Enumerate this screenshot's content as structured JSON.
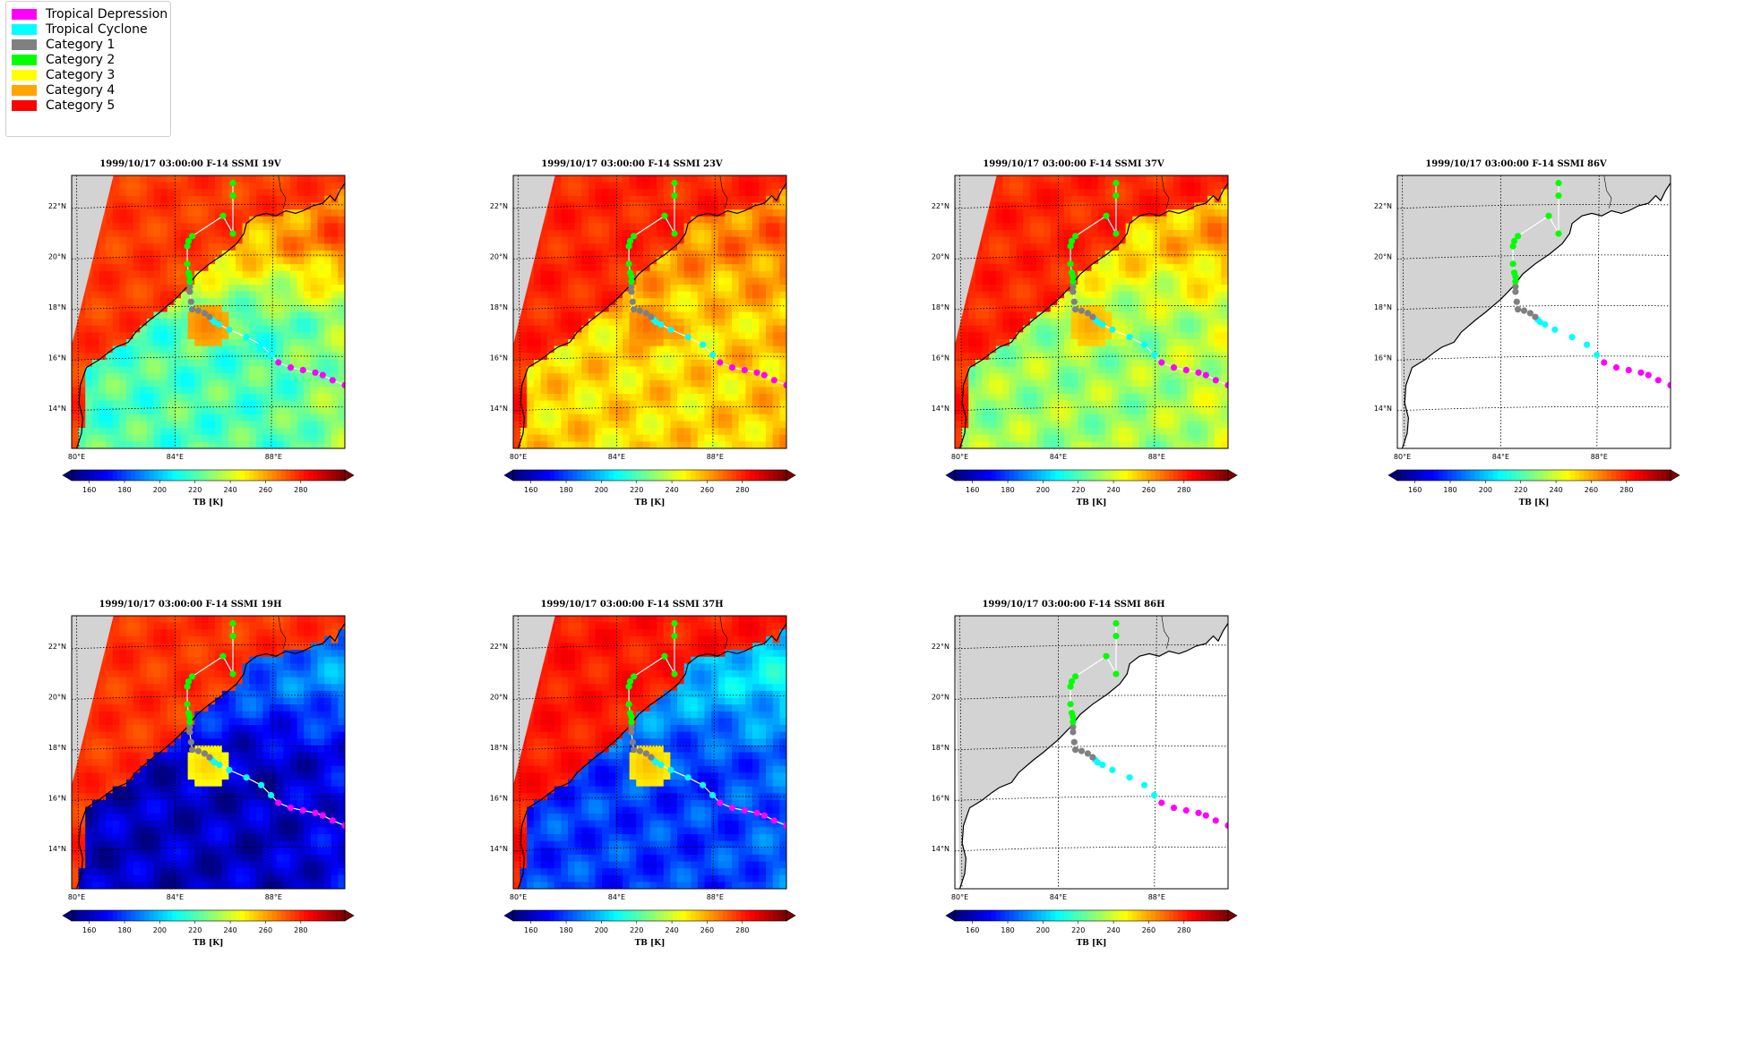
{
  "legend": {
    "items": [
      {
        "label": "Tropical Depression",
        "color": "#ff00ff"
      },
      {
        "label": "Tropical Cyclone",
        "color": "#00ffff"
      },
      {
        "label": "Category 1",
        "color": "#808080"
      },
      {
        "label": "Category 2",
        "color": "#00ff00"
      },
      {
        "label": "Category 3",
        "color": "#ffff00"
      },
      {
        "label": "Category 4",
        "color": "#ffa500"
      },
      {
        "label": "Category 5",
        "color": "#ff0000"
      }
    ]
  },
  "map": {
    "lon_ticks": [
      "80°E",
      "84°E",
      "88°E"
    ],
    "lat_ticks": [
      "22°N",
      "20°N",
      "18°N",
      "16°N",
      "14°N"
    ],
    "land_color": "#d3d3d3"
  },
  "colorbar": {
    "label": "TB [K]",
    "ticks": [
      "160",
      "180",
      "200",
      "220",
      "240",
      "260",
      "280"
    ],
    "range": [
      150,
      305
    ],
    "colormap": "jet"
  },
  "track": [
    {
      "lon": 90.9,
      "lat": 14.9,
      "cat": 0
    },
    {
      "lon": 90.4,
      "lat": 15.1,
      "cat": 0
    },
    {
      "lon": 90.0,
      "lat": 15.3,
      "cat": 0
    },
    {
      "lon": 89.7,
      "lat": 15.4,
      "cat": 0
    },
    {
      "lon": 89.2,
      "lat": 15.5,
      "cat": 0
    },
    {
      "lon": 88.7,
      "lat": 15.6,
      "cat": 0
    },
    {
      "lon": 88.2,
      "lat": 15.8,
      "cat": 0
    },
    {
      "lon": 87.9,
      "lat": 16.1,
      "cat": 1
    },
    {
      "lon": 87.5,
      "lat": 16.5,
      "cat": 1
    },
    {
      "lon": 86.9,
      "lat": 16.8,
      "cat": 1
    },
    {
      "lon": 86.2,
      "lat": 17.1,
      "cat": 1
    },
    {
      "lon": 85.8,
      "lat": 17.3,
      "cat": 1
    },
    {
      "lon": 85.6,
      "lat": 17.4,
      "cat": 1
    },
    {
      "lon": 85.5,
      "lat": 17.5,
      "cat": 1
    },
    {
      "lon": 85.4,
      "lat": 17.6,
      "cat": 2
    },
    {
      "lon": 85.2,
      "lat": 17.75,
      "cat": 2
    },
    {
      "lon": 84.95,
      "lat": 17.85,
      "cat": 2
    },
    {
      "lon": 84.7,
      "lat": 17.9,
      "cat": 2
    },
    {
      "lon": 84.65,
      "lat": 18.2,
      "cat": 2
    },
    {
      "lon": 84.6,
      "lat": 18.6,
      "cat": 2
    },
    {
      "lon": 84.6,
      "lat": 18.8,
      "cat": 2
    },
    {
      "lon": 84.6,
      "lat": 19.0,
      "cat": 3
    },
    {
      "lon": 84.6,
      "lat": 19.2,
      "cat": 3
    },
    {
      "lon": 84.55,
      "lat": 19.35,
      "cat": 3
    },
    {
      "lon": 84.5,
      "lat": 19.7,
      "cat": 3
    },
    {
      "lon": 84.5,
      "lat": 20.4,
      "cat": 3
    },
    {
      "lon": 84.55,
      "lat": 20.6,
      "cat": 3
    },
    {
      "lon": 84.7,
      "lat": 20.8,
      "cat": 3
    },
    {
      "lon": 85.95,
      "lat": 21.6,
      "cat": 3
    },
    {
      "lon": 86.35,
      "lat": 20.9,
      "cat": 3
    },
    {
      "lon": 86.35,
      "lat": 22.4,
      "cat": 3
    },
    {
      "lon": 86.35,
      "lat": 22.9,
      "cat": 3
    }
  ],
  "panels": [
    {
      "title": "1999/10/17 03:00:00  F-14 SSMI 19V",
      "field": "v19",
      "has_data": true
    },
    {
      "title": "1999/10/17 03:00:00  F-14 SSMI 23V",
      "field": "v23",
      "has_data": true
    },
    {
      "title": "1999/10/17 03:00:00  F-14 SSMI 37V",
      "field": "v37",
      "has_data": true
    },
    {
      "title": "1999/10/17 03:00:00  F-14 SSMI 86V",
      "field": "none",
      "has_data": false
    },
    {
      "title": "1999/10/17 03:00:00  F-14 SSMI 19H",
      "field": "h19",
      "has_data": true
    },
    {
      "title": "1999/10/17 03:00:00  F-14 SSMI 37H",
      "field": "h37",
      "has_data": true
    },
    {
      "title": "1999/10/17 03:00:00  F-14 SSMI 86H",
      "field": "none",
      "has_data": false
    }
  ]
}
